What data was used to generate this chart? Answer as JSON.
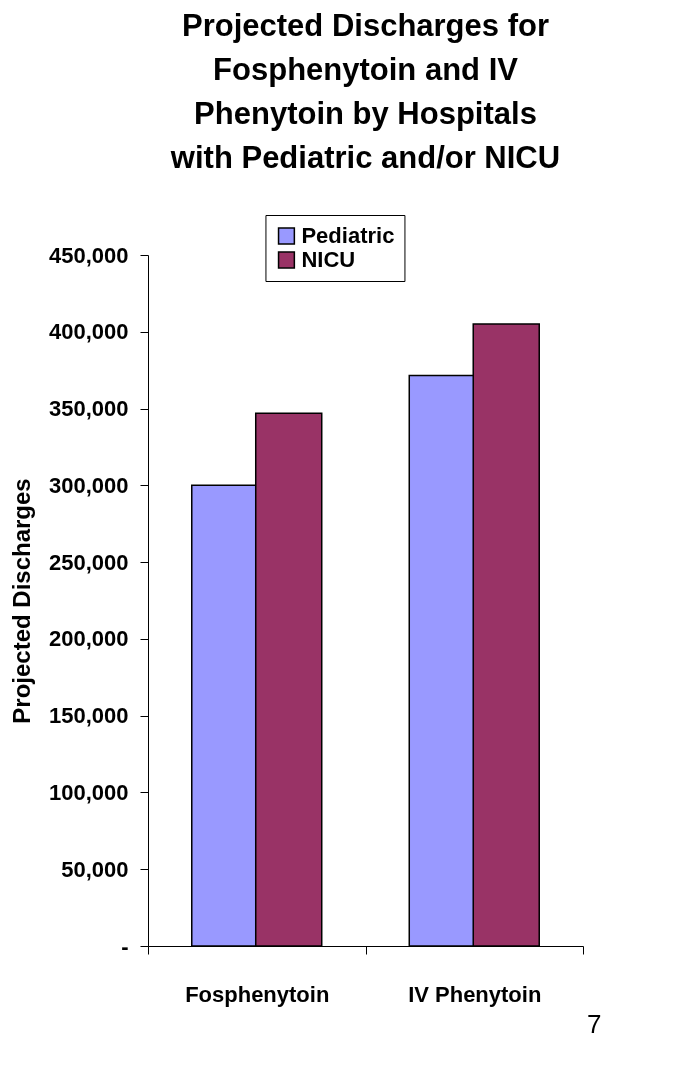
{
  "chart_data": {
    "type": "bar",
    "title": [
      "Projected Discharges for",
      "Fosphenytoin and IV",
      "Phenytoin by Hospitals",
      "with Pediatric and/or NICU"
    ],
    "ylabel": "Projected Discharges",
    "categories": [
      "Fosphenytoin",
      "IV Phenytoin"
    ],
    "series": [
      {
        "name": "Pediatric",
        "color": "#9999ff",
        "values": [
          300000,
          371500
        ]
      },
      {
        "name": "NICU",
        "color": "#993366",
        "values": [
          347000,
          405000
        ]
      }
    ],
    "ylim": [
      0,
      450000
    ],
    "yticks": [
      {
        "value": 0,
        "label": "-"
      },
      {
        "value": 50000,
        "label": "50,000"
      },
      {
        "value": 100000,
        "label": "100,000"
      },
      {
        "value": 150000,
        "label": "150,000"
      },
      {
        "value": 200000,
        "label": "200,000"
      },
      {
        "value": 250000,
        "label": "250,000"
      },
      {
        "value": 300000,
        "label": "300,000"
      },
      {
        "value": 350000,
        "label": "350,000"
      },
      {
        "value": 400000,
        "label": "400,000"
      },
      {
        "value": 450000,
        "label": "450,000"
      }
    ],
    "grid": false,
    "legend": "top",
    "annotations": [
      "7"
    ]
  }
}
